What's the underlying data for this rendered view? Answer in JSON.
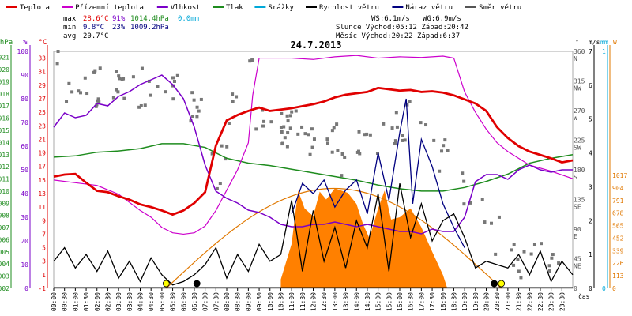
{
  "chart_data": {
    "type": "line",
    "title": "24.7.2013",
    "xlabel": "čas",
    "x_ticks": [
      "00:00",
      "00:30",
      "01:00",
      "01:30",
      "02:00",
      "02:30",
      "03:00",
      "03:30",
      "04:00",
      "04:30",
      "05:00",
      "05:30",
      "06:00",
      "06:30",
      "07:00",
      "07:30",
      "08:00",
      "08:30",
      "09:00",
      "09:30",
      "10:00",
      "10:30",
      "11:00",
      "11:30",
      "12:00",
      "12:30",
      "13:00",
      "13:30",
      "14:00",
      "14:30",
      "15:00",
      "15:30",
      "16:00",
      "16:30",
      "17:00",
      "17:30",
      "18:00",
      "18:30",
      "19:00",
      "19:30",
      "20:00",
      "20:30",
      "21:00",
      "21:30",
      "22:00",
      "22:30",
      "23:00",
      "23:30"
    ],
    "legend": [
      {
        "name": "Teplota",
        "color": "#e00000"
      },
      {
        "name": "Přízemní teplota",
        "color": "#cc00cc"
      },
      {
        "name": "Vlhkost",
        "color": "#7a00c8"
      },
      {
        "name": "Tlak",
        "color": "#1e8c1e"
      },
      {
        "name": "Srážky",
        "color": "#00a8d8"
      },
      {
        "name": "Rychlost větru",
        "color": "#000000"
      },
      {
        "name": "Náraz větru",
        "color": "#000080"
      },
      {
        "name": "Směr větru",
        "color": "#555555"
      }
    ],
    "stats": {
      "max_label": "max",
      "max_temp": "28.6°C",
      "max_hum": "91%",
      "max_press": "1014.4hPa",
      "max_rain": "0.0mm",
      "min_label": "min",
      "min_temp": "9.8°C",
      "min_hum": "23%",
      "min_press": "1009.2hPa",
      "avg_label": "avg",
      "avg_temp": "20.7°C",
      "ws": "WS:6.1m/s",
      "wg": "WG:6.9m/s",
      "sun": "Slunce Východ:05:12  Západ:20:42",
      "moon": "Měsíc  Východ:20:22  Západ:6:37"
    },
    "axes": {
      "hpa_label": "hPa",
      "hpa_ticks": [
        "1021",
        "1020",
        "1019",
        "1018",
        "1017",
        "1016",
        "1015",
        "1014",
        "1013",
        "1012",
        "1011",
        "1010",
        "1009",
        "1008",
        "1007",
        "1006",
        "1005",
        "1004",
        "1003",
        "1002"
      ],
      "pct_label": "%",
      "pct_ticks": [
        "100",
        "90",
        "80",
        "70",
        "60",
        "50",
        "40",
        "30",
        "20",
        "10",
        "0"
      ],
      "degc_label": "°C",
      "degc_ticks": [
        "33",
        "31",
        "29",
        "27",
        "25",
        "23",
        "21",
        "19",
        "17",
        "15",
        "13",
        "11",
        "9",
        "7",
        "5",
        "3",
        "1",
        "-1"
      ],
      "dir_label": "°",
      "dir_ticks": [
        "360\nN",
        "315\nNW",
        "270\nW",
        "225\nSW",
        "180\nS",
        "135\nSE",
        "90\nE",
        "45\nNE",
        "0"
      ],
      "ms_label": "m/s",
      "ms_ticks": [
        "7",
        "6",
        "5",
        "4",
        "3",
        "2",
        "1",
        "0"
      ],
      "mm_label": "mm",
      "mm_ticks": [
        "1",
        "0"
      ],
      "w_label": "W",
      "w_ticks": [
        "1017",
        "904",
        "791",
        "678",
        "565",
        "452",
        "339",
        "226",
        "113",
        "0"
      ]
    },
    "ylim_temp": [
      -1,
      34
    ],
    "ylim_hum": [
      0,
      100
    ],
    "ylim_press": [
      1002,
      1021.5
    ],
    "ylim_wind": [
      0,
      7
    ],
    "ylim_solar": [
      0,
      1017
    ],
    "series": [
      {
        "name": "Teplota",
        "unit": "°C",
        "x": [
          0,
          0.5,
          1,
          1.5,
          2,
          2.5,
          3,
          3.5,
          4,
          4.5,
          5,
          5.5,
          6,
          6.5,
          7,
          7.5,
          8,
          8.5,
          9,
          9.5,
          10,
          10.5,
          11,
          11.5,
          12,
          12.5,
          13,
          13.5,
          14,
          14.5,
          15,
          15.5,
          16,
          16.5,
          17,
          17.5,
          18,
          18.5,
          19,
          19.5,
          20,
          20.5,
          21,
          21.5,
          22,
          22.5,
          23,
          23.5,
          24
        ],
        "y": [
          15.5,
          15.8,
          15.9,
          14.6,
          13.4,
          13.2,
          12.6,
          12.1,
          11.4,
          11.0,
          10.5,
          9.9,
          10.5,
          11.6,
          13.2,
          20.1,
          23.8,
          24.6,
          25.2,
          25.7,
          25.2,
          25.4,
          25.6,
          25.9,
          26.2,
          26.6,
          27.2,
          27.6,
          27.8,
          28.0,
          28.6,
          28.4,
          28.2,
          28.3,
          28.0,
          28.1,
          27.9,
          27.5,
          26.9,
          26.3,
          25.2,
          22.8,
          21.2,
          20.0,
          19.2,
          18.7,
          18.2,
          17.6,
          17.9
        ]
      },
      {
        "name": "Přízemní teplota",
        "unit": "°C",
        "x": [
          0,
          1,
          2,
          3,
          4,
          4.5,
          5,
          5.5,
          6,
          6.5,
          7,
          7.5,
          8,
          8.5,
          9,
          9.2,
          9.5,
          10,
          11,
          12,
          13,
          14,
          15,
          16,
          17,
          18,
          18.5,
          19,
          19.5,
          20,
          20.5,
          21,
          22,
          23,
          24
        ],
        "y": [
          15,
          14.6,
          14.2,
          12.9,
          10.5,
          9.5,
          8.0,
          7.2,
          7.0,
          7.2,
          8.2,
          10.5,
          13.5,
          16.5,
          20.5,
          27.5,
          33.0,
          33.0,
          33.0,
          32.8,
          33.2,
          33.4,
          33.0,
          33.2,
          33.1,
          33.3,
          33.0,
          28.0,
          25.0,
          22.5,
          20.5,
          19.2,
          17.2,
          16.3,
          15.2
        ]
      },
      {
        "name": "Vlhkost",
        "unit": "%",
        "x": [
          0,
          0.5,
          1,
          1.5,
          2,
          2.5,
          3,
          3.5,
          4,
          4.5,
          5,
          5.5,
          6,
          6.5,
          7,
          7.5,
          8,
          8.5,
          9,
          9.5,
          10,
          10.5,
          11,
          11.5,
          12,
          12.5,
          13,
          13.5,
          14,
          14.5,
          15,
          15.5,
          16,
          16.5,
          17,
          17.5,
          18,
          18.5,
          19,
          19.5,
          20,
          20.5,
          21,
          21.5,
          22,
          22.5,
          23,
          23.5,
          24
        ],
        "y": [
          68,
          74,
          72,
          73,
          78,
          77,
          81,
          83,
          86,
          88,
          90,
          86,
          80,
          68,
          52,
          41,
          38,
          36,
          33,
          32,
          30,
          27,
          26,
          26,
          27,
          27,
          28,
          27,
          26,
          27,
          26,
          25,
          24,
          24,
          23,
          25,
          24,
          24,
          30,
          45,
          48,
          48,
          46,
          50,
          52,
          50,
          49,
          50,
          50
        ]
      },
      {
        "name": "Tlak",
        "unit": "hPa",
        "x": [
          0,
          1,
          2,
          3,
          4,
          5,
          6,
          7,
          8,
          9,
          10,
          11,
          12,
          13,
          14,
          15,
          16,
          17,
          18,
          19,
          20,
          21,
          22,
          23,
          24
        ],
        "y": [
          1012.8,
          1012.9,
          1013.2,
          1013.3,
          1013.5,
          1013.9,
          1013.9,
          1013.6,
          1012.7,
          1012.3,
          1012.1,
          1011.8,
          1011.5,
          1011.2,
          1010.9,
          1010.5,
          1010.2,
          1010.0,
          1010.0,
          1010.3,
          1010.8,
          1011.4,
          1012.3,
          1012.7,
          1013.0
        ]
      },
      {
        "name": "Rychlost větru",
        "unit": "m/s",
        "x": [
          0,
          0.5,
          1,
          1.5,
          2,
          2.5,
          3,
          3.5,
          4,
          4.5,
          5,
          5.5,
          6,
          6.5,
          7,
          7.5,
          8,
          8.5,
          9,
          9.5,
          10,
          10.5,
          11,
          11.5,
          12,
          12.5,
          13,
          13.5,
          14,
          14.5,
          15,
          15.5,
          16,
          16.5,
          17,
          17.5,
          18,
          18.5,
          19,
          19.5,
          20,
          20.5,
          21,
          21.5,
          22,
          22.5,
          23,
          23.5,
          24
        ],
        "y": [
          0.8,
          1.2,
          0.6,
          1.0,
          0.5,
          1.1,
          0.3,
          0.8,
          0.2,
          0.9,
          0.4,
          0.1,
          0.2,
          0.4,
          0.7,
          1.2,
          0.3,
          1.0,
          0.5,
          1.3,
          0.8,
          1.0,
          2.6,
          0.5,
          2.3,
          0.8,
          1.8,
          0.6,
          2.0,
          1.2,
          2.8,
          0.5,
          3.1,
          1.5,
          2.5,
          1.4,
          2.0,
          2.2,
          1.5,
          0.6,
          0.8,
          0.7,
          0.6,
          1.0,
          0.4,
          1.1,
          0.2,
          0.8,
          0.4
        ]
      },
      {
        "name": "Náraz větru",
        "unit": "m/s",
        "x": [
          11,
          11.5,
          12,
          12.5,
          13,
          13.5,
          14,
          14.5,
          15,
          15.5,
          16,
          16.3,
          16.6,
          17,
          17.5,
          18,
          18.5,
          19
        ],
        "y": [
          2.2,
          3.1,
          2.8,
          3.2,
          2.4,
          2.9,
          3.2,
          2.2,
          4.0,
          2.6,
          4.6,
          5.6,
          2.5,
          4.4,
          3.6,
          2.5,
          1.8,
          1.2
        ]
      },
      {
        "name": "Sluneční záření",
        "unit": "W",
        "x": [
          10.5,
          11,
          11.3,
          11.6,
          12,
          12.3,
          12.6,
          13,
          13.3,
          13.6,
          14,
          14.3,
          14.6,
          15,
          15.3,
          15.6,
          16,
          16.5,
          17,
          17.5,
          18,
          18.2
        ],
        "y": [
          80,
          400,
          880,
          720,
          650,
          870,
          800,
          900,
          880,
          860,
          760,
          580,
          450,
          720,
          880,
          620,
          640,
          720,
          550,
          330,
          120,
          0
        ]
      }
    ]
  }
}
